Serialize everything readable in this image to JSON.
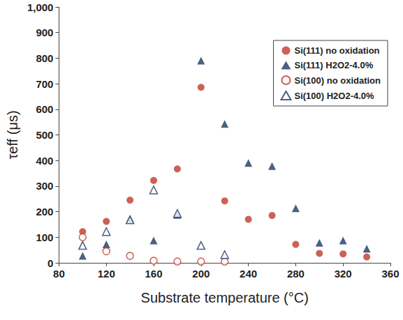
{
  "chart_data": {
    "type": "scatter",
    "x_label": "Substrate temperature (°C)",
    "y_label": "τeff (μs)",
    "x": [
      100,
      120,
      140,
      160,
      180,
      200,
      220,
      240,
      260,
      280,
      300,
      320,
      340
    ],
    "series": [
      {
        "name": "Si(111) no oxidation",
        "color": "#c0392b",
        "marker": "circle",
        "values": [
          122,
          162,
          245,
          322,
          367,
          686,
          242,
          170,
          185,
          72,
          37,
          35,
          23
        ]
      },
      {
        "name": "Si(111) H2O2-4.0%",
        "color": "#1f3864",
        "marker": "triangle",
        "values": [
          27,
          72,
          172,
          87,
          187,
          790,
          543,
          390,
          378,
          213,
          78,
          87,
          55
        ]
      },
      {
        "name": "Si(100) no oxidation",
        "color": "#c0392b",
        "marker": "open-circle",
        "values": [
          100,
          45,
          27,
          8,
          5,
          5,
          5,
          null,
          null,
          null,
          null,
          null,
          null
        ]
      },
      {
        "name": "Si(100) H2O2-4.0%",
        "color": "#1f3864",
        "marker": "open-triangle",
        "values": [
          68,
          122,
          168,
          285,
          193,
          68,
          32,
          null,
          null,
          null,
          null,
          null,
          null
        ]
      }
    ],
    "xlim": [
      80,
      360
    ],
    "xticks": [
      80,
      120,
      160,
      200,
      240,
      280,
      320,
      360
    ],
    "ylim": [
      0,
      1000
    ],
    "yticks": [
      0,
      100,
      200,
      300,
      400,
      500,
      600,
      700,
      800,
      900,
      1000
    ],
    "grid": false,
    "legend": "upper right"
  }
}
